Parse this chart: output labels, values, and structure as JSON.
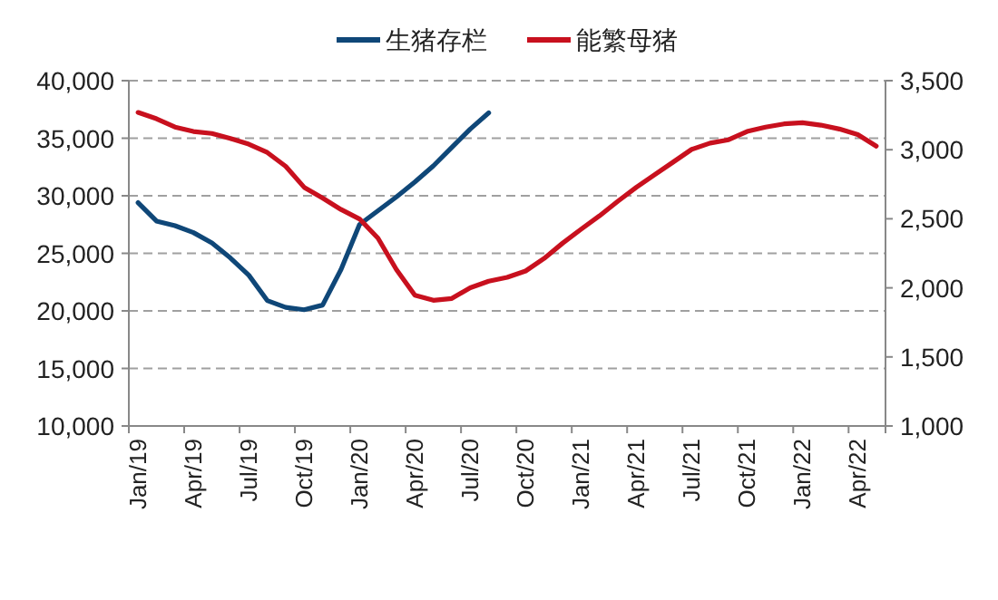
{
  "chart_data": {
    "type": "line",
    "categories": [
      "Jan/19",
      null,
      null,
      "Apr/19",
      null,
      null,
      "Jul/19",
      null,
      null,
      "Oct/19",
      null,
      null,
      "Jan/20",
      null,
      null,
      "Apr/20",
      null,
      null,
      "Jul/20",
      null,
      null,
      "Oct/20",
      null,
      null,
      "Jan/21",
      null,
      null,
      "Apr/21",
      null,
      null,
      "Jul/21",
      null,
      null,
      "Oct/21",
      null,
      null,
      "Jan/22",
      null,
      null,
      "Apr/22",
      null
    ],
    "series": [
      {
        "name": "生猪存栏",
        "color": "#0f4778",
        "values": [
          29400,
          27800,
          27400,
          26800,
          25900,
          24600,
          23100,
          20900,
          20300,
          20100,
          20500,
          23600,
          27500,
          28700,
          29900,
          31200,
          32600,
          34200,
          35800,
          37200,
          null,
          null,
          null,
          null,
          null,
          null,
          null,
          null,
          null,
          null,
          null,
          null,
          null,
          null,
          null,
          null,
          null,
          null,
          null,
          null,
          null
        ]
      },
      {
        "name": "能繁母猪",
        "color": "#c8101e",
        "axis": "y2",
        "values": [
          3270,
          3224,
          3164,
          3132,
          3118,
          3081,
          3040,
          2980,
          2880,
          2728,
          2650,
          2567,
          2499,
          2360,
          2132,
          1946,
          1910,
          1923,
          2001,
          2048,
          2076,
          2122,
          2213,
          2323,
          2424,
          2521,
          2627,
          2728,
          2820,
          2911,
          3003,
          3048,
          3072,
          3132,
          3164,
          3187,
          3196,
          3178,
          3150,
          3109,
          3026
        ]
      }
    ],
    "ylim": [
      10000,
      40000
    ],
    "yticks": [
      {
        "value": 10000,
        "label": "10,000"
      },
      {
        "value": 15000,
        "label": "15,000"
      },
      {
        "value": 20000,
        "label": "20,000"
      },
      {
        "value": 25000,
        "label": "25,000"
      },
      {
        "value": 30000,
        "label": "30,000"
      },
      {
        "value": 35000,
        "label": "35,000"
      },
      {
        "value": 40000,
        "label": "40,000"
      }
    ],
    "y2lim": [
      1000,
      3500
    ],
    "y2ticks": [
      {
        "value": 1000,
        "label": "1,000"
      },
      {
        "value": 1500,
        "label": "1,500"
      },
      {
        "value": 2000,
        "label": "2,000"
      },
      {
        "value": 2500,
        "label": "2,500"
      },
      {
        "value": 3000,
        "label": "3,000"
      },
      {
        "value": 3500,
        "label": "3,500"
      }
    ],
    "grid": "y",
    "legend": "top",
    "marker": "none",
    "line_style": "solid"
  }
}
